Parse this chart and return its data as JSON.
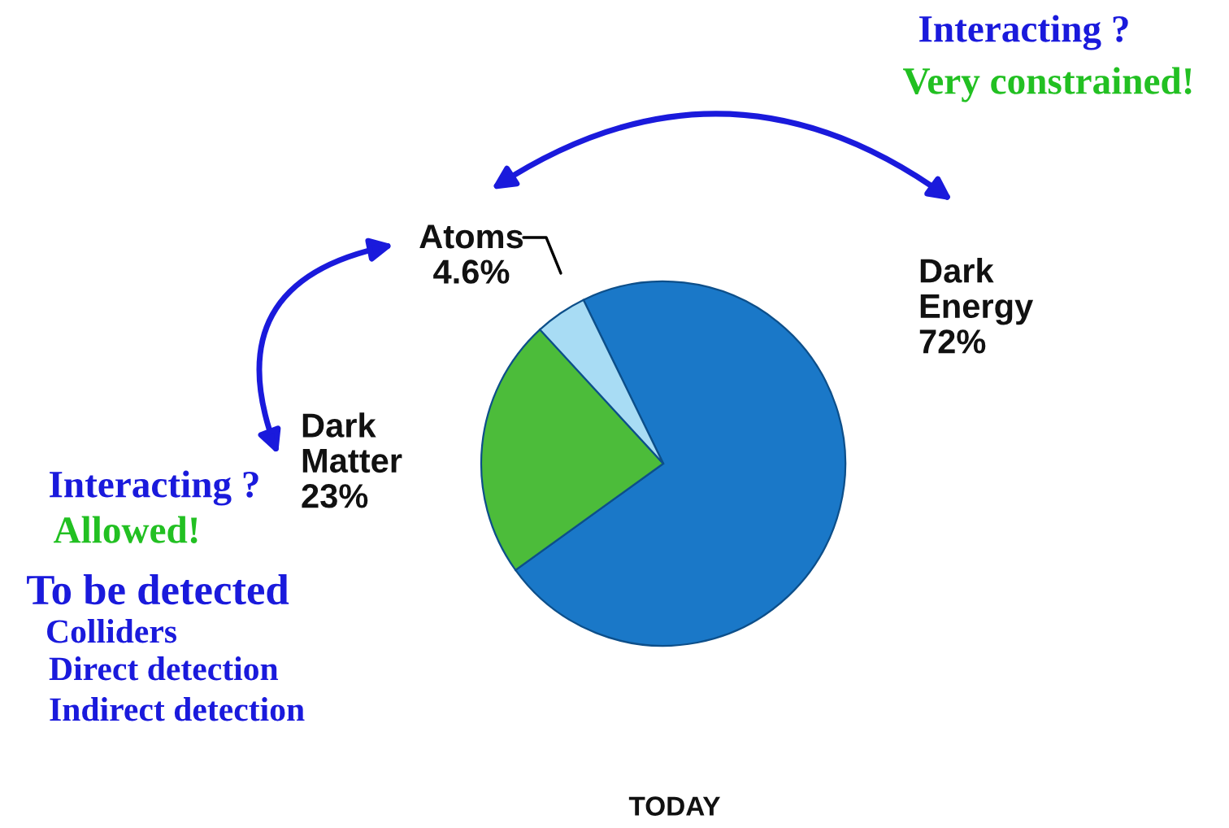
{
  "chart_data": {
    "type": "pie",
    "categories": [
      "Dark Energy",
      "Dark Matter",
      "Atoms"
    ],
    "values": [
      72,
      23,
      4.6
    ],
    "colors": [
      "#1a78c8",
      "#4cbc3a",
      "#a8dcf4"
    ],
    "value_labels": [
      "72%",
      "23%",
      "4.6%"
    ],
    "annotations": [
      "Interacting ?",
      "Very constrained!",
      "Interacting ?",
      "Allowed!",
      "To be detected",
      "Colliders",
      "Direct detection",
      "Indirect detection",
      "TODAY"
    ]
  }
}
